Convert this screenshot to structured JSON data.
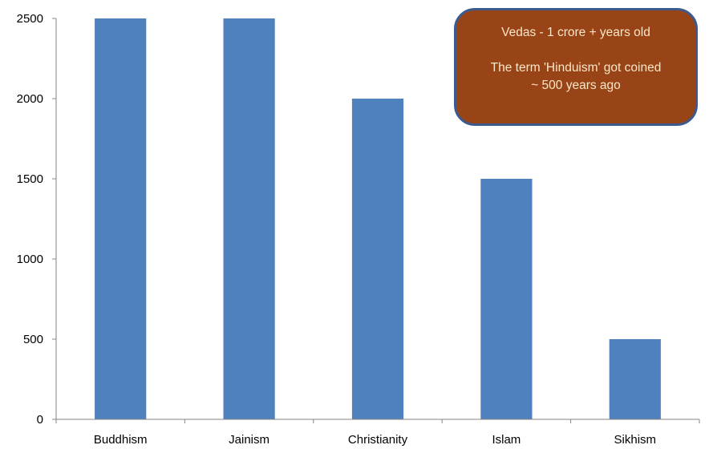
{
  "chart_data": {
    "type": "bar",
    "categories": [
      "Buddhism",
      "Jainism",
      "Christianity",
      "Islam",
      "Sikhism"
    ],
    "values": [
      2500,
      2500,
      2000,
      1500,
      500
    ],
    "title": "",
    "xlabel": "",
    "ylabel": "",
    "ylim": [
      0,
      2500
    ],
    "yticks": [
      0,
      500,
      1000,
      1500,
      2000,
      2500
    ],
    "grid": false,
    "bar_color": "#4f81bd",
    "annotation": {
      "line1": "Vedas - 1 crore + years old",
      "line2": "The term 'Hinduism' got coined ~ 500 years ago",
      "fill_color": "#984416",
      "border_color": "#3c5a8c",
      "text_color": "#fbe6c8"
    }
  }
}
